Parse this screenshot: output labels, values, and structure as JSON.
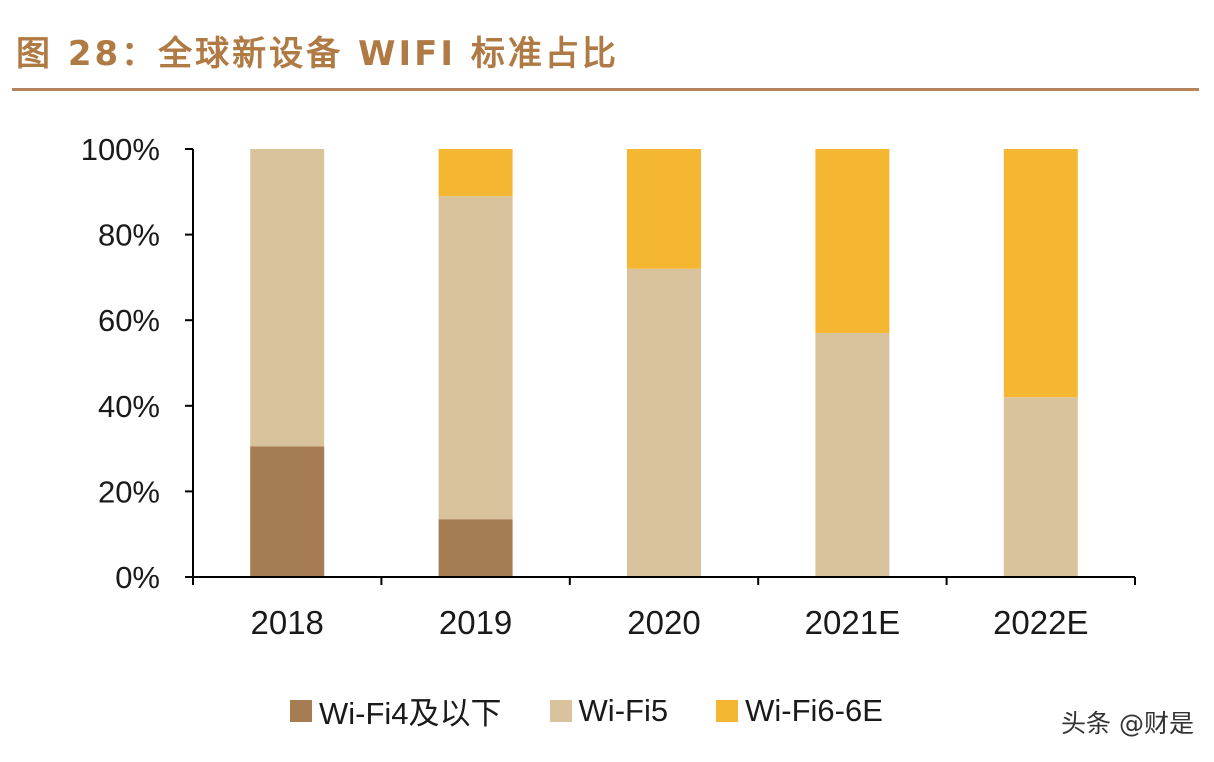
{
  "title": "图 28：全球新设备 WIFI 标准占比",
  "watermark": "头条 @财是",
  "colors": {
    "title": "#b07a45",
    "wifi4": "#a67c52",
    "wifi5": "#d9c39d",
    "wifi6": "#f5b731",
    "axis": "#000000"
  },
  "chart_data": {
    "type": "bar",
    "stacked": true,
    "percent": true,
    "categories": [
      "2018",
      "2019",
      "2020",
      "2021E",
      "2022E"
    ],
    "series": [
      {
        "name": "Wi-Fi4及以下",
        "values": [
          30.5,
          13.5,
          0,
          0,
          0
        ]
      },
      {
        "name": "Wi-Fi5",
        "values": [
          69.5,
          75.5,
          72,
          57,
          42
        ]
      },
      {
        "name": "Wi-Fi6-6E",
        "values": [
          0,
          11,
          28,
          43,
          58
        ]
      }
    ],
    "ylim": [
      0,
      100
    ],
    "yticks": [
      "0%",
      "20%",
      "40%",
      "60%",
      "80%",
      "100%"
    ],
    "ytick_values": [
      0,
      20,
      40,
      60,
      80,
      100
    ],
    "legend_position": "bottom",
    "grid": false
  }
}
